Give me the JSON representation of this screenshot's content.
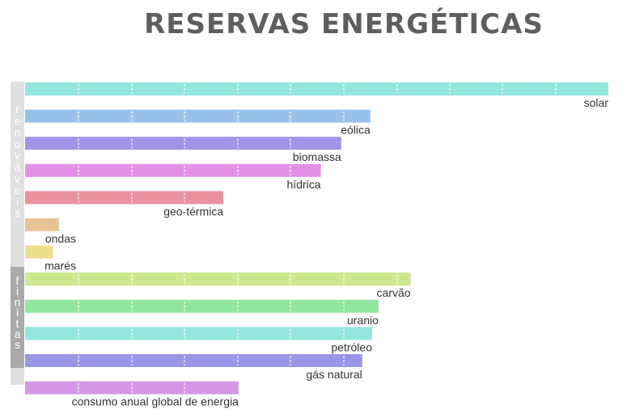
{
  "chart_data": {
    "type": "bar",
    "orientation": "horizontal",
    "title": "RESERVAS ENERGÉTICAS",
    "xlim": [
      0,
      1000
    ],
    "grid": true,
    "groups": [
      {
        "label": "renováveis",
        "color": "#e0e0e0"
      },
      {
        "label": "finitas",
        "color": "#aaaaaa"
      }
    ],
    "categories": [
      "solar",
      "eólica",
      "biomassa",
      "hídrica",
      "geo-térmica",
      "ondas",
      "marés",
      "carvão",
      "uranio",
      "petróleo",
      "gás natural",
      "consumo anual global de energia"
    ],
    "values": [
      1000,
      592,
      542,
      507,
      340,
      58,
      48,
      661,
      606,
      595,
      578,
      366
    ],
    "colors": [
      "#93e6dd",
      "#98c2e9",
      "#a193e8",
      "#e391e7",
      "#e9919f",
      "#e9c396",
      "#ebe08f",
      "#cbe88e",
      "#92e59f",
      "#93e6dd",
      "#9b95e9",
      "#d596e6"
    ]
  }
}
